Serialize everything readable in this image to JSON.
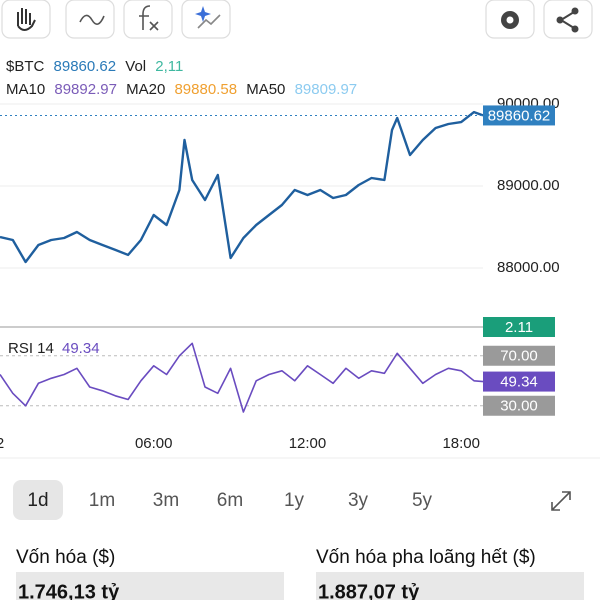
{
  "header": {
    "ticker": "$BTC",
    "price": "89860.62",
    "vol_label": "Vol",
    "vol": "2,11",
    "ma": [
      {
        "label": "MA10",
        "value": "89892.97"
      },
      {
        "label": "MA20",
        "value": "89880.58"
      },
      {
        "label": "MA50",
        "value": "89809.97"
      }
    ]
  },
  "chart_data": [
    {
      "type": "line",
      "name": "price",
      "color": "#1f5f9e",
      "x": [
        0,
        0.5,
        1,
        1.5,
        2,
        2.5,
        3,
        3.5,
        4,
        4.5,
        5,
        5.5,
        6,
        6.5,
        7,
        7.2,
        7.5,
        8,
        8.5,
        9,
        9.5,
        10,
        10.5,
        11,
        11.5,
        12,
        12.5,
        13,
        13.5,
        14,
        14.5,
        15,
        15.3,
        15.5,
        16,
        16.5,
        17,
        17.5,
        18,
        18.5,
        18.85
      ],
      "values": [
        88378,
        88341,
        88073,
        88280,
        88341,
        88366,
        88439,
        88341,
        88280,
        88220,
        88159,
        88341,
        88646,
        88524,
        88951,
        89561,
        89073,
        88829,
        89134,
        88122,
        88366,
        88524,
        88646,
        88768,
        88951,
        88890,
        88951,
        88854,
        88890,
        89012,
        89098,
        89073,
        89683,
        89829,
        89378,
        89561,
        89707,
        89756,
        89780,
        89902,
        89860.62
      ],
      "xlim": [
        0,
        18.85
      ],
      "xticks": [
        {
          "value": 0,
          "label": "2"
        },
        {
          "value": 6,
          "label": "06:00"
        },
        {
          "value": 12,
          "label": "12:00"
        },
        {
          "value": 18,
          "label": "18:00"
        }
      ],
      "ylim": [
        87280,
        90110
      ],
      "yticks": [
        {
          "value": 90000,
          "label": "90000.00"
        },
        {
          "value": 89000,
          "label": "89000.00"
        },
        {
          "value": 88000,
          "label": "88000.00"
        }
      ],
      "last_price": 89860.62,
      "volume_label": "2.11"
    },
    {
      "type": "line",
      "name": "rsi",
      "label": "RSI 14",
      "color": "#6a4cc0",
      "x": [
        0,
        0.5,
        1,
        1.5,
        2,
        2.5,
        3,
        3.5,
        4,
        4.5,
        5,
        5.5,
        6,
        6.5,
        7,
        7.5,
        8,
        8.5,
        9,
        9.5,
        10,
        10.5,
        11,
        11.5,
        12,
        12.5,
        13,
        13.5,
        14,
        14.5,
        15,
        15.5,
        16,
        16.5,
        17,
        17.5,
        18,
        18.5,
        18.85
      ],
      "values": [
        55,
        40,
        30,
        48,
        52,
        55,
        60,
        45,
        42,
        38,
        35,
        50,
        62,
        55,
        70,
        80,
        45,
        40,
        60,
        25,
        50,
        55,
        58,
        50,
        62,
        55,
        48,
        60,
        52,
        58,
        56,
        72,
        60,
        48,
        55,
        60,
        58,
        50,
        49.34
      ],
      "xlim": [
        0,
        18.85
      ],
      "ylim": [
        9,
        89
      ],
      "yticks": [
        {
          "value": 70,
          "label": "70.00"
        },
        {
          "value": 30,
          "label": "30.00"
        }
      ],
      "last_value": 49.34
    }
  ],
  "ranges": [
    "1d",
    "1m",
    "3m",
    "6m",
    "1y",
    "3y",
    "5y"
  ],
  "stats": [
    {
      "label": "Vốn hóa ($)",
      "value": "1.746,13 tỷ"
    },
    {
      "label": "Vốn hóa pha loãng hết ($)",
      "value": "1.887,07 tỷ"
    }
  ]
}
